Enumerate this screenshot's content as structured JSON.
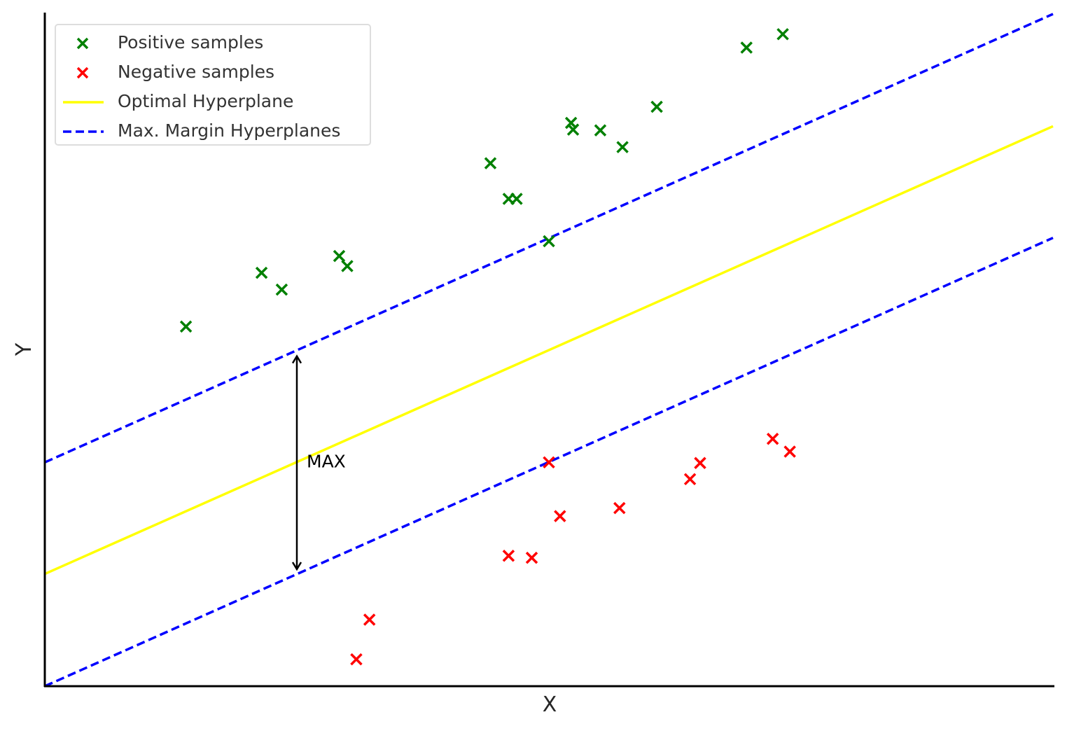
{
  "chart_data": {
    "type": "scatter",
    "xlabel": "X",
    "ylabel": "Y",
    "xlim": [
      0,
      10
    ],
    "ylim": [
      0,
      10
    ],
    "legend_position": "top-left",
    "grid": false,
    "series": [
      {
        "name": "Positive samples",
        "kind": "scatter",
        "marker": "x",
        "color": "#008000",
        "points": [
          [
            1.4,
            5.35
          ],
          [
            2.15,
            6.15
          ],
          [
            2.35,
            5.9
          ],
          [
            2.92,
            6.4
          ],
          [
            3.0,
            6.25
          ],
          [
            4.42,
            7.78
          ],
          [
            4.6,
            7.25
          ],
          [
            4.68,
            7.25
          ],
          [
            5.0,
            6.62
          ],
          [
            5.22,
            8.38
          ],
          [
            5.24,
            8.28
          ],
          [
            5.51,
            8.27
          ],
          [
            5.73,
            8.02
          ],
          [
            6.07,
            8.62
          ],
          [
            6.96,
            9.5
          ],
          [
            7.32,
            9.7
          ]
        ]
      },
      {
        "name": "Negative samples",
        "kind": "scatter",
        "marker": "x",
        "color": "#ff0000",
        "points": [
          [
            3.09,
            0.4
          ],
          [
            3.22,
            0.99
          ],
          [
            4.6,
            1.94
          ],
          [
            4.83,
            1.91
          ],
          [
            5.0,
            3.33
          ],
          [
            5.11,
            2.53
          ],
          [
            5.7,
            2.65
          ],
          [
            6.4,
            3.08
          ],
          [
            6.5,
            3.32
          ],
          [
            7.22,
            3.68
          ],
          [
            7.39,
            3.49
          ]
        ]
      },
      {
        "name": "Optimal Hyperplane",
        "kind": "line",
        "style": "solid",
        "color": "#ffff00",
        "x": [
          0,
          10
        ],
        "y": [
          1.67,
          8.33
        ]
      },
      {
        "name": "Max. Margin Hyperplanes",
        "kind": "line",
        "style": "dashed",
        "color": "#0000ff",
        "x": [
          0,
          10
        ],
        "y": [
          3.33,
          10.0
        ]
      },
      {
        "name": "",
        "kind": "line",
        "style": "dashed",
        "color": "#0000ff",
        "x": [
          0,
          10
        ],
        "y": [
          0.0,
          6.67
        ]
      }
    ],
    "annotations": [
      {
        "text": "MAX",
        "arrow": {
          "x": 2.5,
          "y_from": 1.74,
          "y_to": 4.91
        },
        "text_x": 2.75,
        "text_y": 3.35
      }
    ]
  },
  "legend": {
    "items": [
      {
        "label": "Positive samples",
        "kind": "scatter",
        "color": "#008000"
      },
      {
        "label": "Negative samples",
        "kind": "scatter",
        "color": "#ff0000"
      },
      {
        "label": "Optimal Hyperplane",
        "kind": "line",
        "style": "solid",
        "color": "#ffff00"
      },
      {
        "label": "Max. Margin Hyperplanes",
        "kind": "line",
        "style": "dashed",
        "color": "#0000ff"
      }
    ]
  }
}
